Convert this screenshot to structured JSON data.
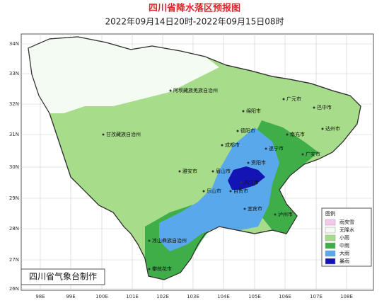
{
  "header": {
    "title": "四川省降水落区预报图",
    "subtitle": "2022年09月14日20时-2022年09月15日08时"
  },
  "map": {
    "lat_labels": [
      "34N",
      "33N",
      "32N",
      "31N",
      "30N",
      "29N",
      "28N",
      "27N",
      "26N"
    ],
    "lon_labels": [
      "98E",
      "99E",
      "100E",
      "101E",
      "102E",
      "103E",
      "104E",
      "105E",
      "106E",
      "107E",
      "108E"
    ],
    "cities": [
      {
        "label": "阿坝藏族羌族自治州"
      },
      {
        "label": "甘孜藏族自治州"
      },
      {
        "label": "凉山彝族自治州"
      },
      {
        "label": "攀枝花市"
      },
      {
        "label": "雅安市"
      },
      {
        "label": "乐山市"
      },
      {
        "label": "眉山市"
      },
      {
        "label": "成都市"
      },
      {
        "label": "德阳市"
      },
      {
        "label": "绵阳市"
      },
      {
        "label": "广元市"
      },
      {
        "label": "巴中市"
      },
      {
        "label": "南充市"
      },
      {
        "label": "达州市"
      },
      {
        "label": "遂宁市"
      },
      {
        "label": "广安市"
      },
      {
        "label": "资阳市"
      },
      {
        "label": "内江市"
      },
      {
        "label": "自贡市"
      },
      {
        "label": "宜宾市"
      },
      {
        "label": "泸州市"
      }
    ]
  },
  "legend": {
    "title": "图例",
    "items": [
      {
        "label": "雨夹雪",
        "color": "#f7c8ec"
      },
      {
        "label": "无降水",
        "color": "#f4fbf2"
      },
      {
        "label": "小雨",
        "color": "#a6dc8a"
      },
      {
        "label": "中雨",
        "color": "#3fae49"
      },
      {
        "label": "大雨",
        "color": "#5aa8ec"
      },
      {
        "label": "暴雨",
        "color": "#1414b4"
      }
    ]
  },
  "footer": "四川省气象台制作"
}
